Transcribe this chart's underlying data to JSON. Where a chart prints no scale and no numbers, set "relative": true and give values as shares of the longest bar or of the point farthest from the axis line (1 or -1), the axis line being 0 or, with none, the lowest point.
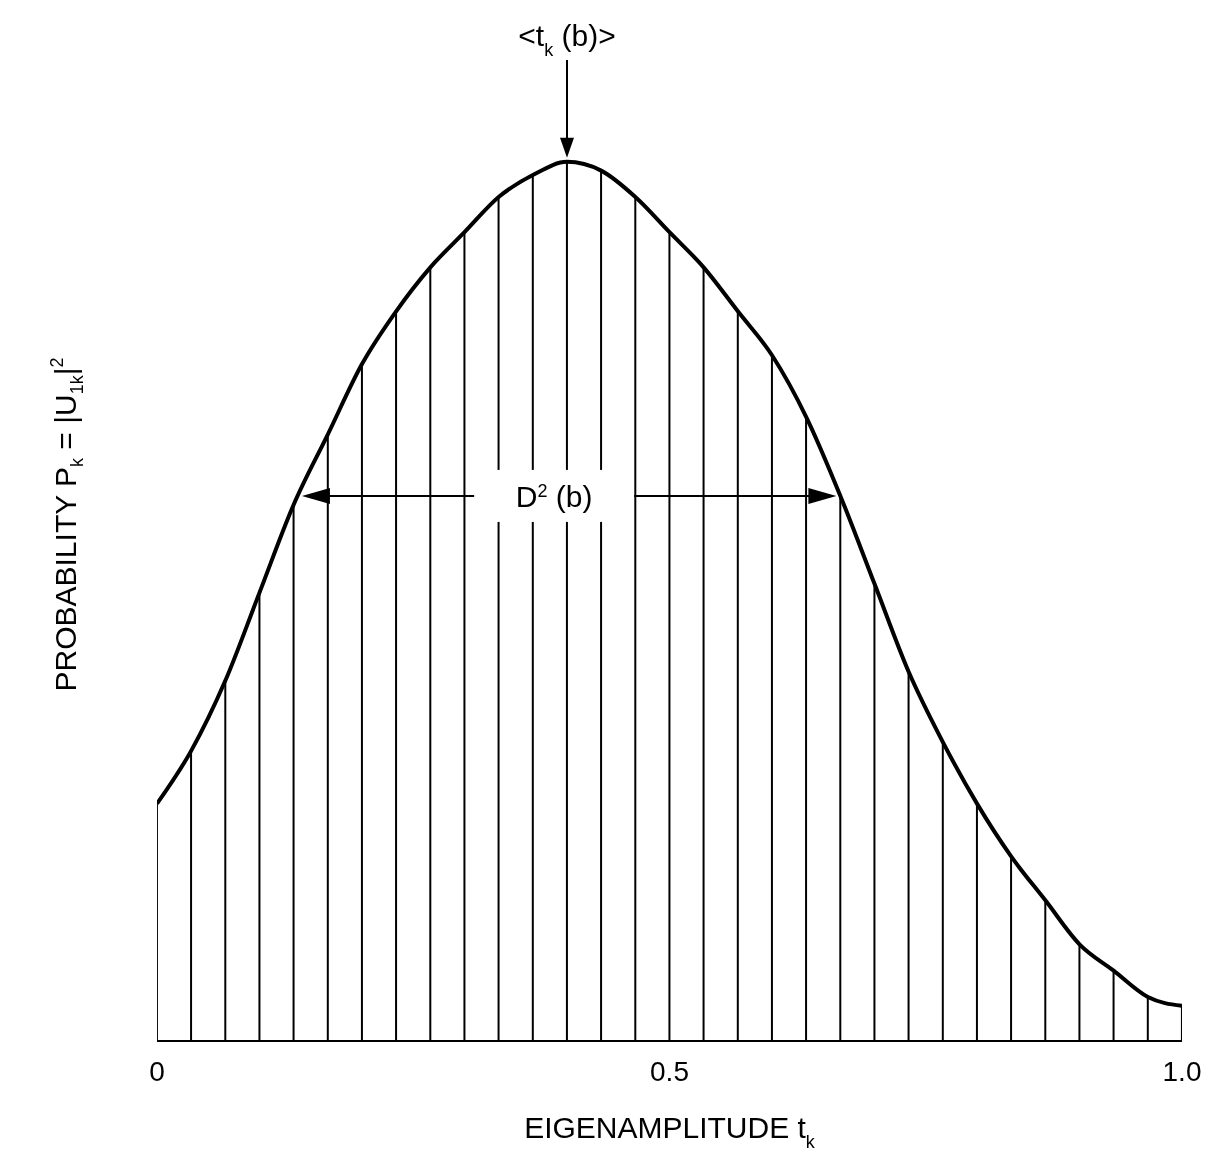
{
  "chart_data": {
    "type": "line",
    "relative": true,
    "xlabel": "EIGENAMPLITUDE   t$_{k}$",
    "ylabel": "PROBABILITY   P$_{k}$  =  |U$_{1k}$|$^{2}$",
    "x": [
      0,
      0.0333,
      0.0667,
      0.1,
      0.1333,
      0.1667,
      0.2,
      0.2333,
      0.2667,
      0.3,
      0.3333,
      0.3667,
      0.4,
      0.4333,
      0.4667,
      0.5,
      0.5333,
      0.5667,
      0.6,
      0.6333,
      0.6667,
      0.7,
      0.7333,
      0.7667,
      0.8,
      0.8333,
      0.8667,
      0.9,
      0.9333,
      0.9667,
      1
    ],
    "xlim": [
      0,
      1
    ],
    "xticks": [
      0,
      0.5,
      {
        "value": 1,
        "label": "1.0"
      }
    ],
    "series": [
      {
        "color": "#000000",
        "values": [
          0.27,
          0.33,
          0.41,
          0.51,
          0.61,
          0.69,
          0.77,
          0.83,
          0.88,
          0.92,
          0.96,
          0.985,
          1,
          0.99,
          0.96,
          0.92,
          0.88,
          0.83,
          0.78,
          0.71,
          0.62,
          0.52,
          0.42,
          0.34,
          0.27,
          0.21,
          0.16,
          0.11,
          0.08,
          0.05,
          0.04
        ]
      },
      {
        "type": "bar",
        "color": "#000000",
        "values": [
          0.27,
          0.33,
          0.41,
          0.51,
          0.61,
          0.69,
          0.77,
          0.83,
          0.88,
          0.92,
          0.96,
          0.985,
          1,
          0.99,
          0.96,
          0.92,
          0.88,
          0.83,
          0.78,
          0.71,
          0.62,
          0.52,
          0.42,
          0.34,
          0.27,
          0.21,
          0.16,
          0.11,
          0.08,
          0.05,
          0.04
        ]
      }
    ],
    "annotations": [
      "<t$_{k}$ (b)>",
      "D$^{2}$ (b)"
    ]
  }
}
